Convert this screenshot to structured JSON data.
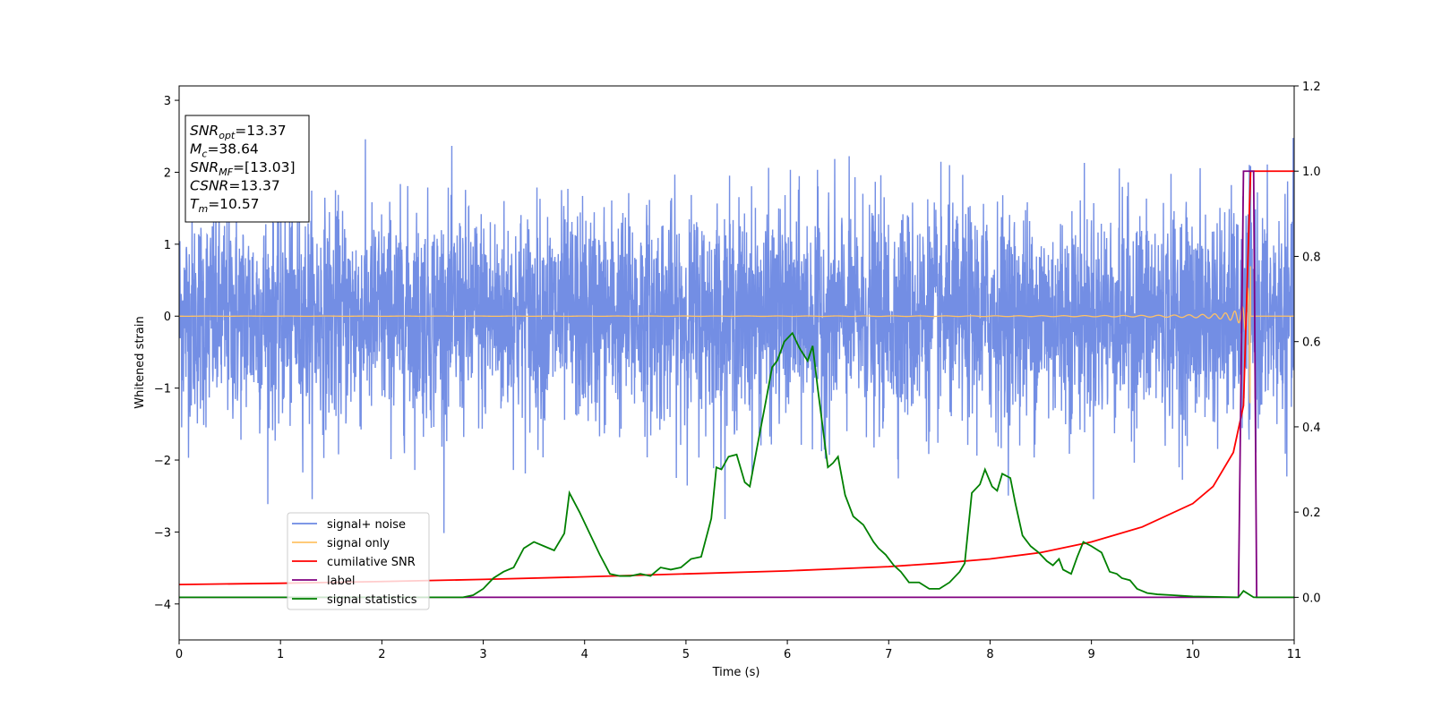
{
  "chart_data": {
    "type": "line",
    "xlabel": "Time (s)",
    "ylabel": "Whitened strain",
    "xlim": [
      0,
      11
    ],
    "ylim_left": [
      -4.5,
      3.2
    ],
    "ylim_right": [
      -0.1,
      1.2
    ],
    "xticks": [
      "0",
      "1",
      "2",
      "3",
      "4",
      "5",
      "6",
      "7",
      "8",
      "9",
      "10",
      "11"
    ],
    "yticks_left": [
      "−4",
      "−3",
      "−2",
      "−1",
      "0",
      "1",
      "2",
      "3"
    ],
    "yticks_right": [
      "0.0",
      "0.2",
      "0.4",
      "0.6",
      "0.8",
      "1.0",
      "1.2"
    ],
    "info_box": [
      {
        "base": "SNR",
        "sub": "opt",
        "value": "=13.37"
      },
      {
        "base": "M",
        "sub": "c",
        "value": "=38.64"
      },
      {
        "base": "SNR",
        "sub": "MF",
        "value": "=[13.03]"
      },
      {
        "base": "CSNR",
        "sub": "",
        "value": "=13.37"
      },
      {
        "base": "T",
        "sub": "m",
        "value": "=10.57"
      }
    ],
    "legend_position": "lower-left",
    "colors": {
      "signal_noise": "#6b88e3",
      "signal_only": "#ffc266",
      "cumulative_snr": "#ff0000",
      "label": "#800080",
      "signal_statistics": "#008000"
    },
    "series": [
      {
        "name": "signal+ noise",
        "axis": "left",
        "description_range": [
          -3.2,
          2.8
        ]
      },
      {
        "name": "signal only",
        "axis": "left",
        "chirp_merger_time": 10.57,
        "peak_amplitude": 2.1
      },
      {
        "name": "cumilative SNR",
        "axis": "right",
        "x": [
          0,
          1,
          2,
          3,
          4,
          5,
          6,
          7,
          7.5,
          8,
          8.5,
          9,
          9.5,
          10,
          10.2,
          10.4,
          10.5,
          10.57,
          11
        ],
        "y": [
          0.03,
          0.033,
          0.037,
          0.042,
          0.048,
          0.055,
          0.062,
          0.072,
          0.08,
          0.09,
          0.105,
          0.13,
          0.165,
          0.22,
          0.26,
          0.34,
          0.45,
          1.0,
          1.0
        ]
      },
      {
        "name": "label",
        "axis": "right",
        "x": [
          0,
          10.45,
          10.5,
          10.6,
          10.63,
          11
        ],
        "y": [
          0,
          0,
          1.0,
          1.0,
          0,
          0
        ]
      },
      {
        "name": "signal statistics",
        "axis": "right",
        "x": [
          0,
          2.8,
          2.9,
          3.0,
          3.1,
          3.2,
          3.3,
          3.4,
          3.5,
          3.6,
          3.7,
          3.8,
          3.85,
          3.95,
          4.05,
          4.15,
          4.25,
          4.35,
          4.45,
          4.55,
          4.65,
          4.75,
          4.85,
          4.95,
          5.05,
          5.15,
          5.25,
          5.3,
          5.35,
          5.42,
          5.5,
          5.58,
          5.63,
          5.7,
          5.78,
          5.85,
          5.9,
          5.97,
          6.05,
          6.12,
          6.2,
          6.25,
          6.3,
          6.4,
          6.45,
          6.5,
          6.57,
          6.65,
          6.75,
          6.85,
          6.9,
          6.97,
          7.05,
          7.12,
          7.2,
          7.3,
          7.4,
          7.5,
          7.6,
          7.7,
          7.75,
          7.82,
          7.9,
          7.95,
          8.02,
          8.07,
          8.12,
          8.2,
          8.25,
          8.32,
          8.4,
          8.48,
          8.56,
          8.62,
          8.68,
          8.72,
          8.8,
          8.86,
          8.92,
          9.0,
          9.1,
          9.18,
          9.25,
          9.3,
          9.38,
          9.45,
          9.55,
          9.65,
          9.8,
          10.0,
          10.45,
          10.5,
          10.6,
          11
        ],
        "y": [
          0,
          0.0,
          0.005,
          0.02,
          0.045,
          0.06,
          0.07,
          0.115,
          0.13,
          0.12,
          0.11,
          0.15,
          0.245,
          0.2,
          0.15,
          0.1,
          0.055,
          0.05,
          0.05,
          0.055,
          0.05,
          0.07,
          0.065,
          0.07,
          0.09,
          0.095,
          0.185,
          0.305,
          0.3,
          0.33,
          0.335,
          0.27,
          0.26,
          0.35,
          0.45,
          0.54,
          0.555,
          0.6,
          0.62,
          0.585,
          0.555,
          0.59,
          0.49,
          0.305,
          0.315,
          0.33,
          0.24,
          0.19,
          0.17,
          0.13,
          0.115,
          0.1,
          0.075,
          0.06,
          0.035,
          0.035,
          0.02,
          0.02,
          0.035,
          0.06,
          0.08,
          0.245,
          0.265,
          0.3,
          0.26,
          0.25,
          0.29,
          0.28,
          0.22,
          0.145,
          0.12,
          0.105,
          0.085,
          0.075,
          0.09,
          0.065,
          0.055,
          0.095,
          0.13,
          0.12,
          0.105,
          0.06,
          0.055,
          0.045,
          0.04,
          0.02,
          0.01,
          0.007,
          0.005,
          0.002,
          0.0,
          0.015,
          0.0,
          0.0
        ]
      }
    ]
  }
}
